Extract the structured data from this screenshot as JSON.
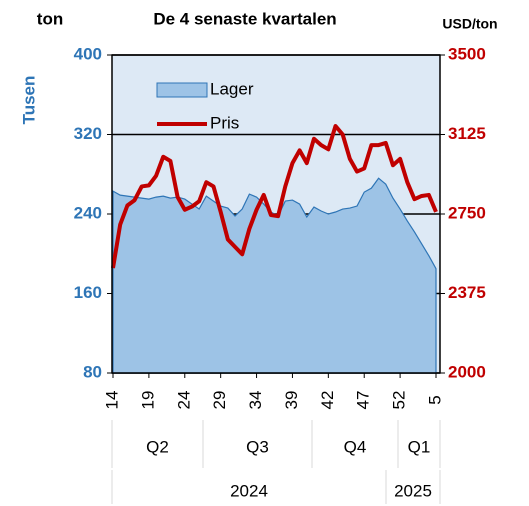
{
  "chart_data": {
    "type": "combo",
    "title": "De 4 senaste kvartalen",
    "y_unit": "ton",
    "y_label": "Tusen",
    "y2_unit": "USD/ton",
    "categories": [
      "14",
      null,
      null,
      null,
      null,
      "19",
      null,
      null,
      null,
      null,
      "24",
      null,
      null,
      null,
      null,
      "29",
      null,
      null,
      null,
      null,
      "34",
      null,
      null,
      null,
      null,
      "39",
      null,
      null,
      null,
      null,
      "42",
      null,
      null,
      null,
      null,
      "47",
      null,
      null,
      null,
      null,
      "52",
      null,
      null,
      null,
      null,
      "5"
    ],
    "quarters": [
      "Q2",
      "Q3",
      "Q4",
      "Q1"
    ],
    "years": [
      "2024",
      "2025"
    ],
    "series": [
      {
        "name": "Lager",
        "type": "area",
        "color": "#9dc3e6",
        "line_color": "#2e75b6",
        "values": [
          263,
          259,
          258,
          257,
          256,
          255,
          257,
          258,
          256,
          257,
          255,
          250,
          245,
          258,
          253,
          248,
          246,
          238,
          245,
          260,
          257,
          250,
          242,
          238,
          253,
          254,
          250,
          237,
          247,
          243,
          240,
          242,
          245,
          246,
          248,
          262,
          266,
          276,
          270,
          256,
          245,
          233,
          222,
          210,
          198,
          185
        ]
      },
      {
        "name": "Pris",
        "type": "line",
        "axis": "y2",
        "color": "#c00000",
        "values": [
          2495,
          2700,
          2790,
          2815,
          2880,
          2885,
          2930,
          3020,
          3000,
          2830,
          2770,
          2785,
          2810,
          2900,
          2880,
          2760,
          2630,
          2595,
          2560,
          2680,
          2770,
          2840,
          2745,
          2740,
          2880,
          2990,
          3050,
          2990,
          3105,
          3075,
          3055,
          3165,
          3125,
          3010,
          2950,
          2965,
          3075,
          3075,
          3085,
          2980,
          3010,
          2900,
          2820,
          2835,
          2840,
          2760
        ]
      }
    ],
    "ylim": [
      80,
      400
    ],
    "yticks": [
      80,
      160,
      240,
      320,
      400
    ],
    "y2lim": [
      2000,
      3500
    ],
    "y2ticks": [
      2000,
      2375,
      2750,
      3125,
      3500
    ],
    "grid": true,
    "background": "#dde9f5",
    "y_color": "#2e75b6",
    "y2_color": "#c00000"
  }
}
